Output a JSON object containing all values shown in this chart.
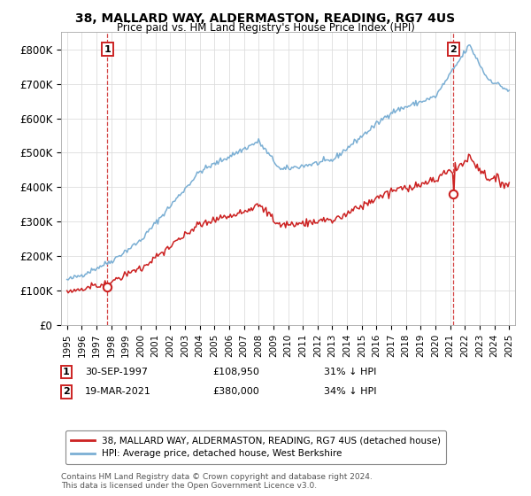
{
  "title_line1": "38, MALLARD WAY, ALDERMASTON, READING, RG7 4US",
  "title_line2": "Price paid vs. HM Land Registry's House Price Index (HPI)",
  "ylim": [
    0,
    850000
  ],
  "yticks": [
    0,
    100000,
    200000,
    300000,
    400000,
    500000,
    600000,
    700000,
    800000
  ],
  "ytick_labels": [
    "£0",
    "£100K",
    "£200K",
    "£300K",
    "£400K",
    "£500K",
    "£600K",
    "£700K",
    "£800K"
  ],
  "hpi_color": "#7bafd4",
  "price_color": "#cc2222",
  "dashed_color": "#cc2222",
  "t1": 1997.75,
  "t2": 2021.21,
  "marker1_price_val": 108950,
  "marker2_price_val": 380000,
  "marker1_date_str": "30-SEP-1997",
  "marker1_price": "£108,950",
  "marker1_note": "31% ↓ HPI",
  "marker2_date_str": "19-MAR-2021",
  "marker2_price": "£380,000",
  "marker2_note": "34% ↓ HPI",
  "legend_line1": "38, MALLARD WAY, ALDERMASTON, READING, RG7 4US (detached house)",
  "legend_line2": "HPI: Average price, detached house, West Berkshire",
  "footnote": "Contains HM Land Registry data © Crown copyright and database right 2024.\nThis data is licensed under the Open Government Licence v3.0.",
  "background_color": "#ffffff",
  "grid_color": "#dddddd",
  "xlim_left": 1994.6,
  "xlim_right": 2025.4
}
